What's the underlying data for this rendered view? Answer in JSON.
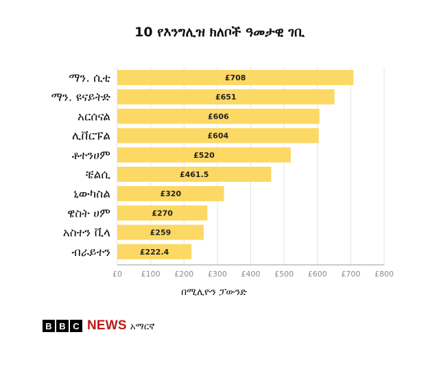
{
  "title": "10 የእንግሊዝ ክለቦች ዓመታዊ ገቢ",
  "chart_data": {
    "type": "bar",
    "orientation": "horizontal",
    "categories": [
      "ማን. ሲቲ",
      "ማን. ዩናይትድ",
      "አርሰናል",
      "ሊቨርፑል",
      "ቶተንሀም",
      "ቼልሲ",
      "ኒውካስል",
      "ዌስት ሀም",
      "አስተን ቪላ",
      "ብራይተን"
    ],
    "values": [
      708,
      651,
      606,
      604,
      520,
      461.5,
      320,
      270,
      259,
      222.4
    ],
    "value_labels": [
      "£708",
      "£651",
      "£606",
      "£604",
      "£520",
      "£461.5",
      "£320",
      "£270",
      "£259",
      "£222.4"
    ],
    "x_ticks": [
      "£0",
      "£100",
      "£200",
      "£300",
      "£400",
      "£500",
      "£600",
      "£700",
      "£800"
    ],
    "xlim": [
      0,
      800
    ],
    "xlabel": "በሚሊዮን ፓውንድ",
    "bar_color": "#fcd864",
    "grid": true
  },
  "footer": {
    "letters": [
      "B",
      "B",
      "C"
    ],
    "news": "NEWS",
    "language": "አማርኛ"
  }
}
